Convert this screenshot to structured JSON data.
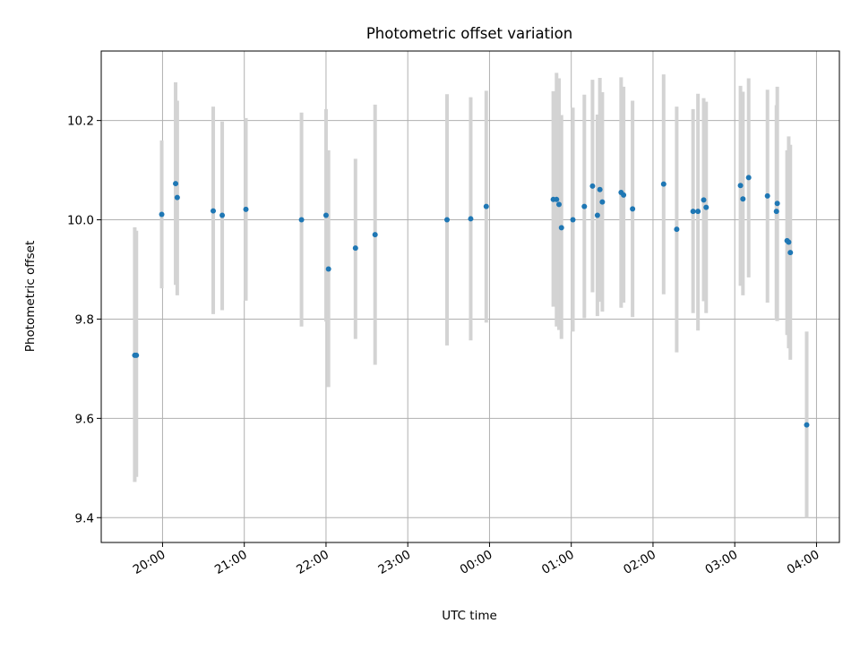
{
  "colors": {
    "point": "#1f77b4",
    "errorbar": "#d3d3d3",
    "grid": "#b0b0b0",
    "axes": "#000000"
  },
  "chart_data": {
    "type": "scatter",
    "title": "Photometric offset variation",
    "xlabel": "UTC time",
    "ylabel": "Photometric offset",
    "x_unit": "hours since 00:00 UTC",
    "xlim": [
      -4.75,
      4.28
    ],
    "ylim": [
      9.35,
      10.34
    ],
    "grid": true,
    "x_ticks": [
      {
        "value": -4,
        "label": "20:00"
      },
      {
        "value": -3,
        "label": "21:00"
      },
      {
        "value": -2,
        "label": "22:00"
      },
      {
        "value": -1,
        "label": "23:00"
      },
      {
        "value": 0,
        "label": "00:00"
      },
      {
        "value": 1,
        "label": "01:00"
      },
      {
        "value": 2,
        "label": "02:00"
      },
      {
        "value": 3,
        "label": "03:00"
      },
      {
        "value": 4,
        "label": "04:00"
      }
    ],
    "y_ticks": [
      {
        "value": 9.4,
        "label": "9.4"
      },
      {
        "value": 9.6,
        "label": "9.6"
      },
      {
        "value": 9.8,
        "label": "9.8"
      },
      {
        "value": 10.0,
        "label": "10.0"
      },
      {
        "value": 10.2,
        "label": "10.2"
      }
    ],
    "points": [
      {
        "x": -4.34,
        "y": 9.727,
        "lo": 9.472,
        "hi": 9.985
      },
      {
        "x": -4.32,
        "y": 9.727,
        "lo": 9.482,
        "hi": 9.978
      },
      {
        "x": -4.01,
        "y": 10.011,
        "lo": 9.862,
        "hi": 10.16
      },
      {
        "x": -3.84,
        "y": 10.073,
        "lo": 9.869,
        "hi": 10.277
      },
      {
        "x": -3.82,
        "y": 10.045,
        "lo": 9.848,
        "hi": 10.24
      },
      {
        "x": -3.38,
        "y": 10.018,
        "lo": 9.81,
        "hi": 10.228
      },
      {
        "x": -3.27,
        "y": 10.009,
        "lo": 9.818,
        "hi": 10.198
      },
      {
        "x": -2.98,
        "y": 10.021,
        "lo": 9.837,
        "hi": 10.205
      },
      {
        "x": -2.3,
        "y": 10.0,
        "lo": 9.785,
        "hi": 10.216
      },
      {
        "x": -2.0,
        "y": 10.009,
        "lo": 9.795,
        "hi": 10.223
      },
      {
        "x": -1.97,
        "y": 9.901,
        "lo": 9.663,
        "hi": 10.14
      },
      {
        "x": -1.64,
        "y": 9.943,
        "lo": 9.76,
        "hi": 10.123
      },
      {
        "x": -1.4,
        "y": 9.97,
        "lo": 9.708,
        "hi": 10.232
      },
      {
        "x": -0.52,
        "y": 10.0,
        "lo": 9.747,
        "hi": 10.253
      },
      {
        "x": -0.23,
        "y": 10.002,
        "lo": 9.757,
        "hi": 10.247
      },
      {
        "x": -0.04,
        "y": 10.027,
        "lo": 9.793,
        "hi": 10.26
      },
      {
        "x": 0.78,
        "y": 10.041,
        "lo": 9.825,
        "hi": 10.259
      },
      {
        "x": 0.82,
        "y": 10.041,
        "lo": 9.785,
        "hi": 10.296
      },
      {
        "x": 0.85,
        "y": 10.031,
        "lo": 9.778,
        "hi": 10.285
      },
      {
        "x": 0.88,
        "y": 9.984,
        "lo": 9.76,
        "hi": 10.211
      },
      {
        "x": 1.02,
        "y": 10.0,
        "lo": 9.775,
        "hi": 10.226
      },
      {
        "x": 1.16,
        "y": 10.027,
        "lo": 9.802,
        "hi": 10.252
      },
      {
        "x": 1.26,
        "y": 10.068,
        "lo": 9.854,
        "hi": 10.282
      },
      {
        "x": 1.32,
        "y": 10.009,
        "lo": 9.806,
        "hi": 10.212
      },
      {
        "x": 1.35,
        "y": 10.061,
        "lo": 9.835,
        "hi": 10.286
      },
      {
        "x": 1.38,
        "y": 10.036,
        "lo": 9.815,
        "hi": 10.257
      },
      {
        "x": 1.61,
        "y": 10.055,
        "lo": 9.823,
        "hi": 10.287
      },
      {
        "x": 1.64,
        "y": 10.05,
        "lo": 9.833,
        "hi": 10.268
      },
      {
        "x": 1.75,
        "y": 10.022,
        "lo": 9.804,
        "hi": 10.24
      },
      {
        "x": 2.13,
        "y": 10.072,
        "lo": 9.85,
        "hi": 10.293
      },
      {
        "x": 2.29,
        "y": 9.981,
        "lo": 9.733,
        "hi": 10.228
      },
      {
        "x": 2.49,
        "y": 10.017,
        "lo": 9.812,
        "hi": 10.223
      },
      {
        "x": 2.55,
        "y": 10.017,
        "lo": 9.777,
        "hi": 10.254
      },
      {
        "x": 2.62,
        "y": 10.04,
        "lo": 9.836,
        "hi": 10.245
      },
      {
        "x": 2.65,
        "y": 10.025,
        "lo": 9.812,
        "hi": 10.238
      },
      {
        "x": 3.07,
        "y": 10.069,
        "lo": 9.867,
        "hi": 10.27
      },
      {
        "x": 3.1,
        "y": 10.042,
        "lo": 9.848,
        "hi": 10.258
      },
      {
        "x": 3.17,
        "y": 10.085,
        "lo": 9.884,
        "hi": 10.285
      },
      {
        "x": 3.4,
        "y": 10.048,
        "lo": 9.833,
        "hi": 10.262
      },
      {
        "x": 3.51,
        "y": 10.017,
        "lo": 9.798,
        "hi": 10.231
      },
      {
        "x": 3.52,
        "y": 10.033,
        "lo": 9.796,
        "hi": 10.268
      },
      {
        "x": 3.64,
        "y": 9.958,
        "lo": 9.768,
        "hi": 10.14
      },
      {
        "x": 3.66,
        "y": 9.955,
        "lo": 9.741,
        "hi": 10.168
      },
      {
        "x": 3.68,
        "y": 9.934,
        "lo": 9.718,
        "hi": 10.151
      },
      {
        "x": 3.88,
        "y": 9.587,
        "lo": 9.4,
        "hi": 9.775
      }
    ]
  }
}
